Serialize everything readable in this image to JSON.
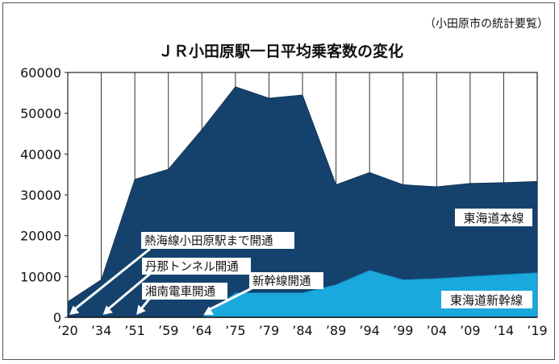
{
  "chart_data": {
    "type": "area",
    "title": "ＪＲ小田原駅一日平均乗客数の変化",
    "source": "（小田原市の統計要覧）",
    "categories": [
      "’20",
      "’34",
      "’51",
      "’59",
      "’64",
      "’75",
      "’79",
      "’84",
      "’89",
      "’94",
      "’99",
      "’04",
      "’09",
      "’14",
      "’19"
    ],
    "ylim": [
      0,
      60000
    ],
    "yticks": [
      "0",
      "10000",
      "20000",
      "30000",
      "40000",
      "50000",
      "60000"
    ],
    "grid": true,
    "series": [
      {
        "name": "東海道本線",
        "color": "#14426d",
        "values": [
          3800,
          9200,
          33800,
          36300,
          46000,
          56500,
          53700,
          54500,
          32500,
          35500,
          32500,
          32000,
          32800,
          33000,
          33300
        ]
      },
      {
        "name": "東海道新幹線",
        "color": "#1ba8dc",
        "start_index": 4,
        "values": [
          null,
          null,
          null,
          null,
          0,
          6000,
          6000,
          6000,
          8000,
          11500,
          9200,
          9500,
          10000,
          10500,
          10900
        ]
      }
    ],
    "annotations": [
      {
        "text": "熱海線小田原駅まで開通",
        "target_index": 0
      },
      {
        "text": "丹那トンネル開通",
        "target_index": 1
      },
      {
        "text": "湘南電車開通",
        "target_index": 2
      },
      {
        "text": "新幹線開通",
        "target_index": 4
      }
    ]
  }
}
